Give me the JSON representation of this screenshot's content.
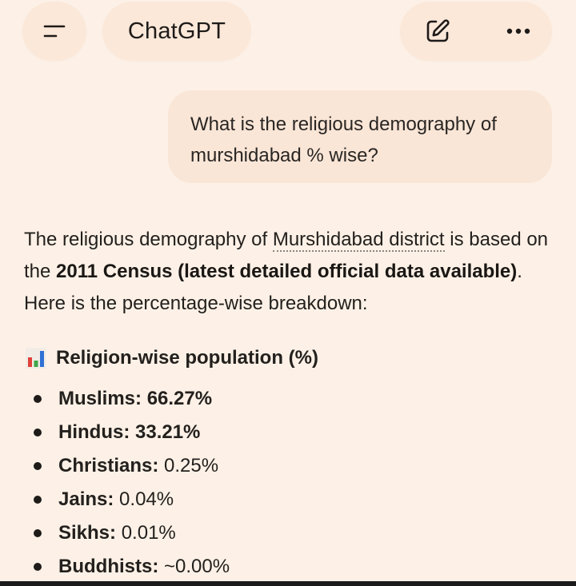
{
  "header": {
    "title": "ChatGPT",
    "menu_icon": "hamburger-menu-icon",
    "edit_icon": "new-chat-edit-icon",
    "more_icon": "more-dots-icon"
  },
  "user_message": {
    "line1": "What is the religious demography of",
    "line2": "murshidabad % wise?"
  },
  "response": {
    "p_part1": "The religious demography of ",
    "p_link": "Murshidabad district",
    "p_part2": " is based on the ",
    "p_bold": "2011 Census (latest detailed official data available)",
    "p_part3": ". Here is the percentage-wise breakdown:",
    "heading_icon": "bar-chart-emoji-icon",
    "heading": "Religion-wise population (%)",
    "items": [
      {
        "label": "Muslims:",
        "value": "66.27%",
        "value_bold": true
      },
      {
        "label": "Hindus:",
        "value": "33.21%",
        "value_bold": true
      },
      {
        "label": "Christians:",
        "value": "0.25%",
        "value_bold": false
      },
      {
        "label": "Jains:",
        "value": "0.04%",
        "value_bold": false
      },
      {
        "label": "Sikhs:",
        "value": "0.01%",
        "value_bold": false
      },
      {
        "label": "Buddhists:",
        "value": "~0.00%",
        "value_bold": false
      }
    ]
  },
  "colors": {
    "background": "#fdf1e7",
    "pill": "#fbe8d9",
    "user_bubble": "#fae6d7",
    "text": "#23201d",
    "chart_red": "#e0413a",
    "chart_green": "#3fa64a",
    "chart_blue": "#2f6fd6"
  }
}
